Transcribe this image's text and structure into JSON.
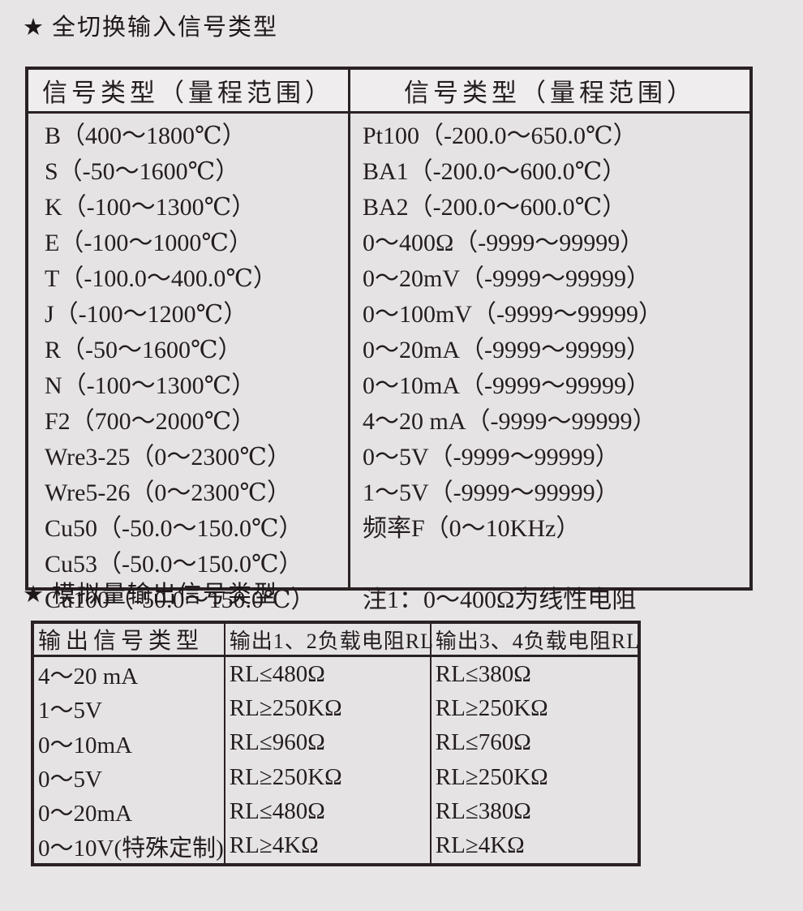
{
  "page_bg": "#e7e5e6",
  "border_color": "#2a2123",
  "section1": {
    "star": "★",
    "title": "全切换输入信号类型",
    "table": {
      "header_left": "信号类型（量程范围）",
      "header_right": "信号类型（量程范围）",
      "left_rows": [
        "B（400～1800℃）",
        "S（-50～1600℃）",
        "K（-100～1300℃）",
        "E（-100～1000℃）",
        "T（-100.0～400.0℃）",
        "J（-100～1200℃）",
        "R（-50～1600℃）",
        "N（-100～1300℃）",
        "F2（700～2000℃）",
        "Wre3-25（0～2300℃）",
        "Wre5-26（0～2300℃）",
        "Cu50（-50.0～150.0℃）",
        "Cu53（-50.0～150.0℃）",
        "Cu100（-50.0～150.0℃）"
      ],
      "right_rows": [
        "Pt100（-200.0～650.0℃）",
        "BA1（-200.0～600.0℃）",
        "BA2（-200.0～600.0℃）",
        "0～400Ω（-9999～99999）",
        "0～20mV（-9999～99999）",
        "0～100mV（-9999～99999）",
        "0～20mA（-9999～99999）",
        "0～10mA（-9999～99999）",
        "4～20 mA（-9999～99999）",
        "0～5V（-9999～99999）",
        "1～5V（-9999～99999）",
        "频率F（0～10KHz）",
        "",
        "注1：0～400Ω为线性电阻"
      ]
    }
  },
  "section2": {
    "star": "★",
    "title": "模拟量输出信号类型",
    "table": {
      "headers": [
        "输出信号类型",
        "输出1、2负载电阻RL",
        "输出3、4负载电阻RL"
      ],
      "col1_rows": [
        "4～20 mA",
        "1～5V",
        "0～10mA",
        "0～5V",
        "0～20mA",
        "0～10V(特殊定制)"
      ],
      "col2_rows": [
        "RL≤480Ω",
        "RL≥250KΩ",
        "RL≤960Ω",
        "RL≥250KΩ",
        "RL≤480Ω",
        "RL≥4KΩ"
      ],
      "col3_rows": [
        "RL≤380Ω",
        "RL≥250KΩ",
        "RL≤760Ω",
        "RL≥250KΩ",
        "RL≤380Ω",
        "RL≥4KΩ"
      ]
    }
  }
}
